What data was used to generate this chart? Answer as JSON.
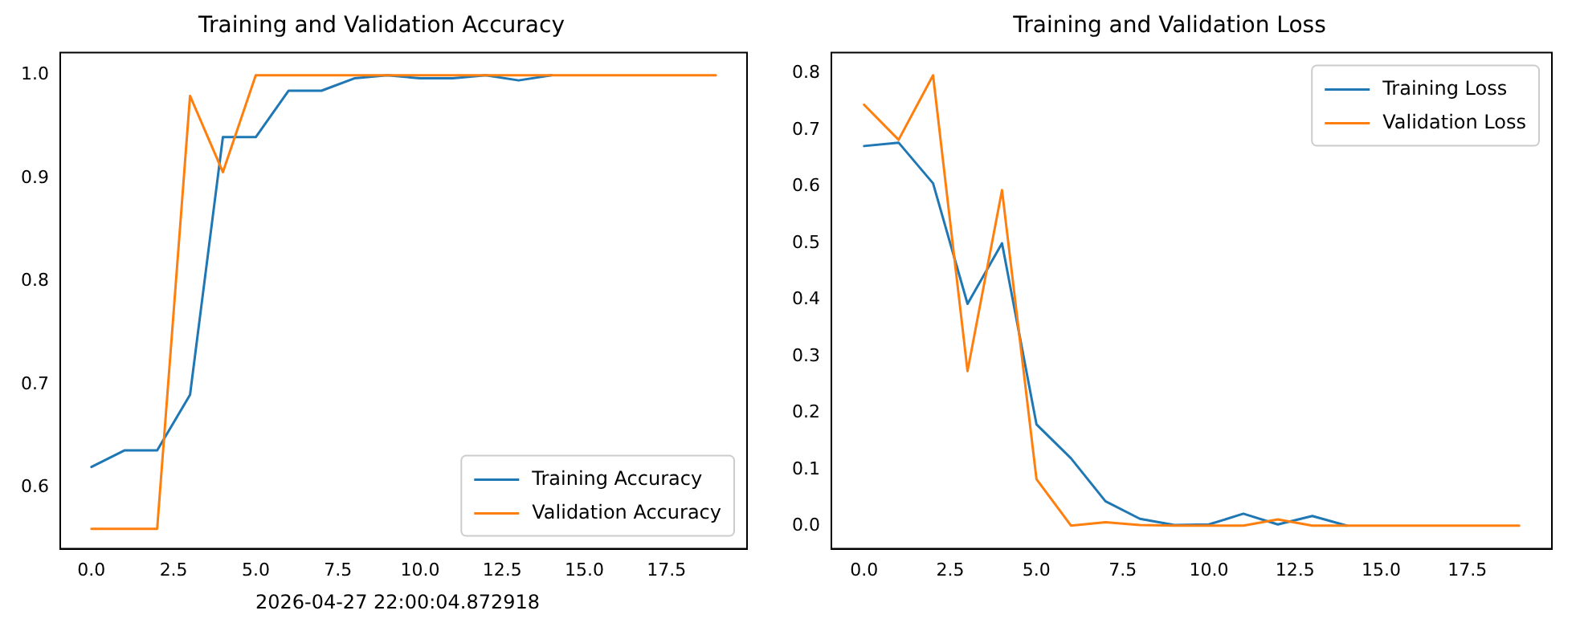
{
  "chart_data": [
    {
      "type": "line",
      "title": "Training and Validation Accuracy",
      "x": [
        0,
        1,
        2,
        3,
        4,
        5,
        6,
        7,
        8,
        9,
        10,
        11,
        12,
        13,
        14,
        15,
        16,
        17,
        18,
        19
      ],
      "series": [
        {
          "name": "Training Accuracy",
          "color": "#1f77b4",
          "values": [
            0.62,
            0.636,
            0.636,
            0.69,
            0.94,
            0.94,
            0.985,
            0.985,
            0.997,
            1.0,
            0.997,
            0.997,
            1.0,
            0.995,
            1.0,
            null,
            null,
            null,
            null,
            null
          ]
        },
        {
          "name": "Validation Accuracy",
          "color": "#ff7f0e",
          "values": [
            0.56,
            0.56,
            0.56,
            0.98,
            0.906,
            1.0,
            1.0,
            1.0,
            1.0,
            1.0,
            1.0,
            1.0,
            1.0,
            1.0,
            1.0,
            1.0,
            1.0,
            1.0,
            1.0,
            1.0
          ]
        }
      ],
      "xlim": [
        -0.95,
        19.95
      ],
      "xticks": [
        {
          "value": 0,
          "label": "0.0"
        },
        2.5,
        {
          "value": 5,
          "label": "5.0"
        },
        7.5,
        {
          "value": 10,
          "label": "10.0"
        },
        12.5,
        {
          "value": 15,
          "label": "15.0"
        },
        17.5
      ],
      "ylim": [
        0.5406,
        1.0219
      ],
      "yticks": [
        0.6,
        0.7,
        0.8,
        0.9,
        {
          "value": 1,
          "label": "1.0"
        }
      ],
      "legend": "bottom right",
      "grid": false,
      "marker": "none",
      "line_style": "solid",
      "annotations": [
        "2026-04-27 22:00:04.872918"
      ]
    },
    {
      "type": "line",
      "title": "Training and Validation Loss",
      "x": [
        0,
        1,
        2,
        3,
        4,
        5,
        6,
        7,
        8,
        9,
        10,
        11,
        12,
        13,
        14,
        15,
        16,
        17,
        18,
        19
      ],
      "series": [
        {
          "name": "Training Loss",
          "color": "#1f77b4",
          "values": [
            0.672,
            0.678,
            0.606,
            0.393,
            0.5,
            0.18,
            0.12,
            0.044,
            0.013,
            0.002,
            0.003,
            0.022,
            0.003,
            0.018,
            0.001,
            null,
            null,
            null,
            null,
            null
          ]
        },
        {
          "name": "Validation Loss",
          "color": "#ff7f0e",
          "values": [
            0.745,
            0.683,
            0.797,
            0.274,
            0.594,
            0.083,
            0.001,
            0.007,
            0.002,
            0.001,
            0.001,
            0.001,
            0.012,
            0.001,
            0.001,
            0.001,
            0.001,
            0.001,
            0.001,
            0.001
          ]
        }
      ],
      "xlim": [
        -0.95,
        19.95
      ],
      "xticks": [
        {
          "value": 0,
          "label": "0.0"
        },
        2.5,
        {
          "value": 5,
          "label": "5.0"
        },
        7.5,
        {
          "value": 10,
          "label": "10.0"
        },
        12.5,
        {
          "value": 15,
          "label": "15.0"
        },
        17.5
      ],
      "ylim": [
        -0.04,
        0.837
      ],
      "yticks": [
        {
          "value": 0,
          "label": "0.0"
        },
        0.1,
        0.2,
        0.3,
        0.4,
        0.5,
        0.6,
        0.7,
        0.8
      ],
      "legend": "top right",
      "grid": false,
      "marker": "none",
      "line_style": "solid"
    }
  ]
}
